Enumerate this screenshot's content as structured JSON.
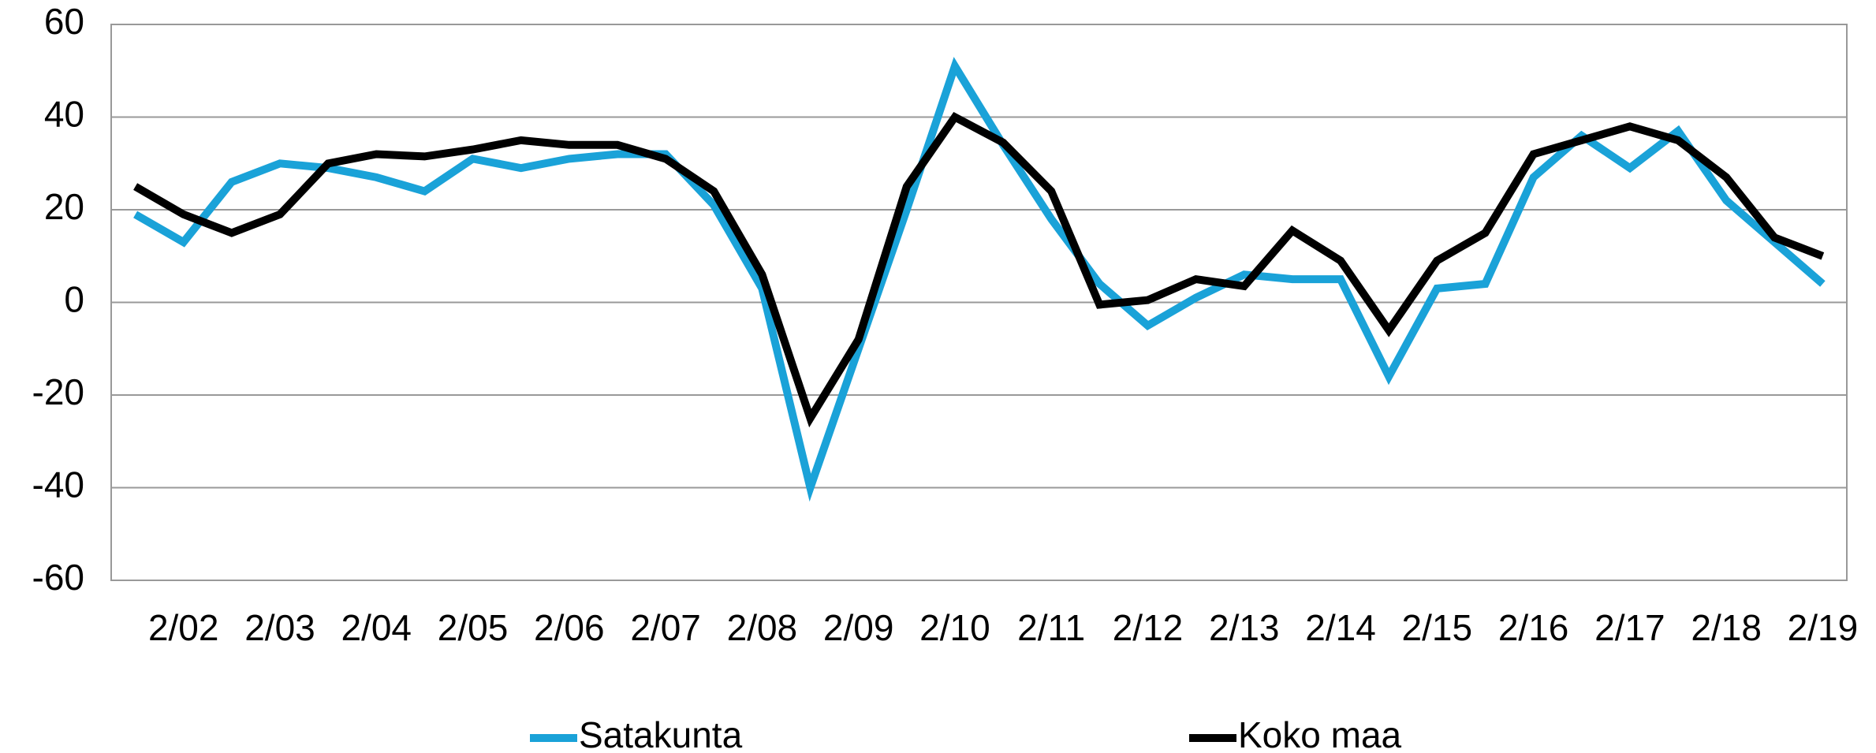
{
  "chart_data": {
    "type": "line",
    "categories": [
      null,
      "2/02",
      null,
      "2/03",
      null,
      "2/04",
      null,
      "2/05",
      null,
      "2/06",
      null,
      "2/07",
      null,
      "2/08",
      null,
      "2/09",
      null,
      "2/10",
      null,
      "2/11",
      null,
      "2/12",
      null,
      "2/13",
      null,
      "2/14",
      null,
      "2/15",
      null,
      "2/16",
      null,
      "2/17",
      null,
      "2/18",
      null,
      "2/19"
    ],
    "series": [
      {
        "name": "Satakunta",
        "color": "#1aa2d8",
        "values": [
          19,
          13,
          26,
          30,
          29,
          27,
          24,
          31,
          29,
          31,
          32,
          32,
          21,
          3,
          -40,
          -10,
          20,
          51,
          34,
          18,
          4,
          -5,
          1,
          6,
          5,
          5,
          -16,
          3,
          4,
          27,
          36,
          29,
          37,
          22,
          13,
          4
        ]
      },
      {
        "name": "Koko maa",
        "color": "#000000",
        "values": [
          25,
          19,
          15,
          19,
          30,
          32,
          31.5,
          33,
          35,
          34,
          34,
          31,
          24,
          6,
          -25,
          -8,
          25,
          40,
          34.5,
          24,
          -0.5,
          0.5,
          5,
          3.5,
          15.5,
          9,
          -6,
          9,
          15,
          32,
          35,
          38,
          35,
          27,
          14,
          10
        ]
      }
    ],
    "ylim": [
      -60,
      60
    ],
    "yticks": [
      -60,
      -40,
      -20,
      0,
      20,
      40,
      60
    ],
    "grid": true,
    "legend": "bottom"
  }
}
